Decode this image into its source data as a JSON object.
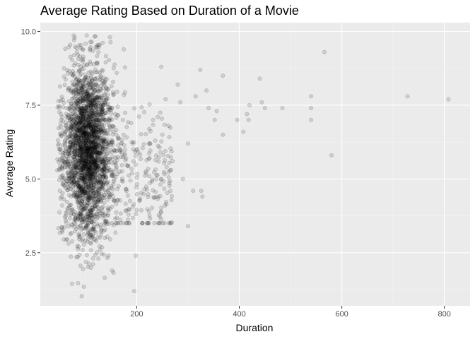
{
  "chart_data": {
    "type": "scatter",
    "title": "Average Rating Based on Duration of a Movie",
    "xlabel": "Duration",
    "ylabel": "Average Rating",
    "xlim": [
      12,
      850
    ],
    "ylim": [
      0.7,
      10.3
    ],
    "x_ticks": [
      200,
      400,
      600,
      800
    ],
    "x_tick_labels": [
      "200",
      "400",
      "600",
      "800"
    ],
    "y_ticks": [
      2.5,
      5.0,
      7.5,
      10.0
    ],
    "y_tick_labels": [
      "2.5",
      "5.0",
      "7.5",
      "10.0"
    ],
    "grid": true,
    "point_color": "#000000",
    "point_opacity": 0.12,
    "panel_color": "#ebebeb",
    "outliers": [
      {
        "x": 808,
        "y": 7.7
      },
      {
        "x": 728,
        "y": 7.8
      },
      {
        "x": 566,
        "y": 9.3
      },
      {
        "x": 580,
        "y": 5.8
      },
      {
        "x": 540,
        "y": 7.8
      },
      {
        "x": 540,
        "y": 7.4
      },
      {
        "x": 540,
        "y": 7.0
      },
      {
        "x": 484,
        "y": 7.4
      },
      {
        "x": 450,
        "y": 7.4
      },
      {
        "x": 440,
        "y": 8.4
      },
      {
        "x": 444,
        "y": 7.6
      },
      {
        "x": 420,
        "y": 7.5
      },
      {
        "x": 415,
        "y": 7.2
      },
      {
        "x": 418,
        "y": 7.0
      },
      {
        "x": 408,
        "y": 6.6
      },
      {
        "x": 396,
        "y": 7.0
      },
      {
        "x": 368,
        "y": 8.5
      },
      {
        "x": 368,
        "y": 6.5
      },
      {
        "x": 356,
        "y": 7.3
      },
      {
        "x": 352,
        "y": 7.0
      },
      {
        "x": 336,
        "y": 8.0
      },
      {
        "x": 324,
        "y": 8.7
      },
      {
        "x": 326,
        "y": 4.6
      },
      {
        "x": 328,
        "y": 4.4
      },
      {
        "x": 300,
        "y": 6.2
      },
      {
        "x": 300,
        "y": 3.4
      },
      {
        "x": 310,
        "y": 4.6
      },
      {
        "x": 290,
        "y": 5.0
      },
      {
        "x": 285,
        "y": 7.6
      },
      {
        "x": 280,
        "y": 8.2
      },
      {
        "x": 270,
        "y": 5.6
      },
      {
        "x": 266,
        "y": 4.6
      },
      {
        "x": 262,
        "y": 6.8
      },
      {
        "x": 250,
        "y": 6.5
      },
      {
        "x": 248,
        "y": 8.8
      },
      {
        "x": 242,
        "y": 4.4
      },
      {
        "x": 238,
        "y": 5.0
      },
      {
        "x": 236,
        "y": 6.3
      },
      {
        "x": 232,
        "y": 7.0
      },
      {
        "x": 224,
        "y": 3.9
      },
      {
        "x": 195,
        "y": 1.2
      },
      {
        "x": 198,
        "y": 2.4
      },
      {
        "x": 315,
        "y": 7.8
      },
      {
        "x": 340,
        "y": 7.4
      },
      {
        "x": 255,
        "y": 4.1
      }
    ]
  }
}
